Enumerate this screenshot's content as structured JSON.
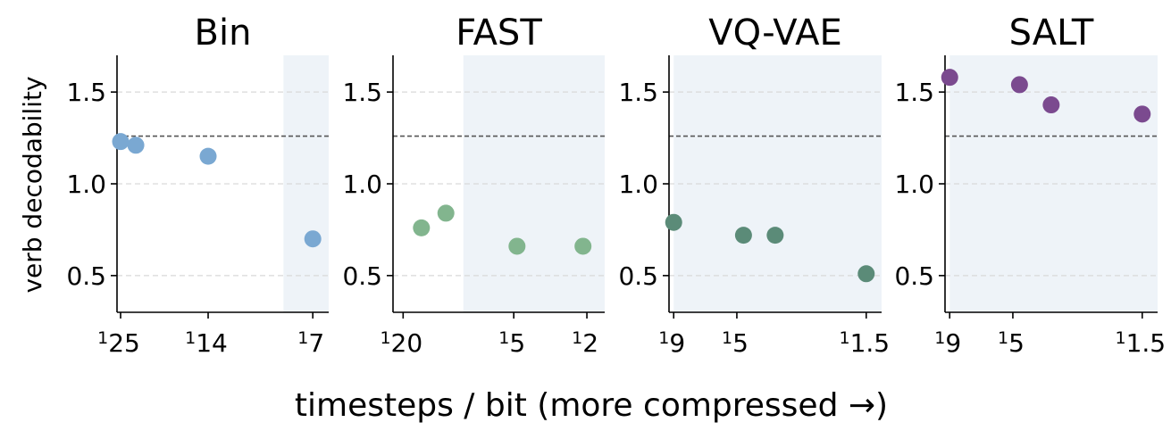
{
  "figure": {
    "ylabel": "verb decodability",
    "xlabel": "timesteps / bit  (more compressed →)",
    "reference_line": 1.26,
    "y_ticks": [
      "0.5",
      "1.0",
      "1.5"
    ],
    "y_tick_values": [
      0.5,
      1.0,
      1.5
    ],
    "ylim": [
      0.3,
      1.7
    ],
    "grid": "horizontal dashed",
    "shaded_color": "#eef3f8"
  },
  "chart_data": [
    {
      "type": "scatter",
      "title": "Bin",
      "color": "#7aa8d2",
      "x_tick_labels": [
        {
          "num": "1",
          "den": "25",
          "x": 25
        },
        {
          "num": "1",
          "den": "14",
          "x": 14
        },
        {
          "num": "1",
          "den": "7",
          "x": 7
        }
      ],
      "xlim": [
        25.6,
        6.3
      ],
      "shade_from_x": 8.5,
      "points": [
        {
          "x": 25,
          "y": 1.23
        },
        {
          "x": 22.6,
          "y": 1.21
        },
        {
          "x": 14,
          "y": 1.15
        },
        {
          "x": 7,
          "y": 0.7
        }
      ]
    },
    {
      "type": "scatter",
      "title": "FAST",
      "color": "#82b58e",
      "x_tick_labels": [
        {
          "num": "1",
          "den": "20",
          "x": 20
        },
        {
          "num": "1",
          "den": "5",
          "x": 5
        },
        {
          "num": "1",
          "den": "2",
          "x": 2
        }
      ],
      "xlim": [
        22.7,
        1.6
      ],
      "shade_from_x": 9.4,
      "points": [
        {
          "x": 15.9,
          "y": 0.76
        },
        {
          "x": 11.7,
          "y": 0.84
        },
        {
          "x": 4.8,
          "y": 0.66
        },
        {
          "x": 2.1,
          "y": 0.66
        }
      ]
    },
    {
      "type": "scatter",
      "title": "VQ-VAE",
      "color": "#5b8b78",
      "x_tick_labels": [
        {
          "num": "1",
          "den": "9",
          "x": 9
        },
        {
          "num": "1",
          "den": "5",
          "x": 5
        },
        {
          "num": "1",
          "den": "1.5",
          "x": 1.5
        }
      ],
      "xlim": [
        9.4,
        1.3
      ],
      "shade_from_x": 9,
      "points": [
        {
          "x": 9,
          "y": 0.79
        },
        {
          "x": 4.7,
          "y": 0.72
        },
        {
          "x": 3.5,
          "y": 0.72
        },
        {
          "x": 1.5,
          "y": 0.51
        }
      ]
    },
    {
      "type": "scatter",
      "title": "SALT",
      "color": "#7b4a8f",
      "x_tick_labels": [
        {
          "num": "1",
          "den": "9",
          "x": 9
        },
        {
          "num": "1",
          "den": "5",
          "x": 5
        },
        {
          "num": "1",
          "den": "1.5",
          "x": 1.5
        }
      ],
      "xlim": [
        9.4,
        1.3
      ],
      "shade_from_x": 9,
      "points": [
        {
          "x": 9,
          "y": 1.58
        },
        {
          "x": 4.7,
          "y": 1.54
        },
        {
          "x": 3.5,
          "y": 1.43
        },
        {
          "x": 1.5,
          "y": 1.38
        }
      ]
    }
  ]
}
